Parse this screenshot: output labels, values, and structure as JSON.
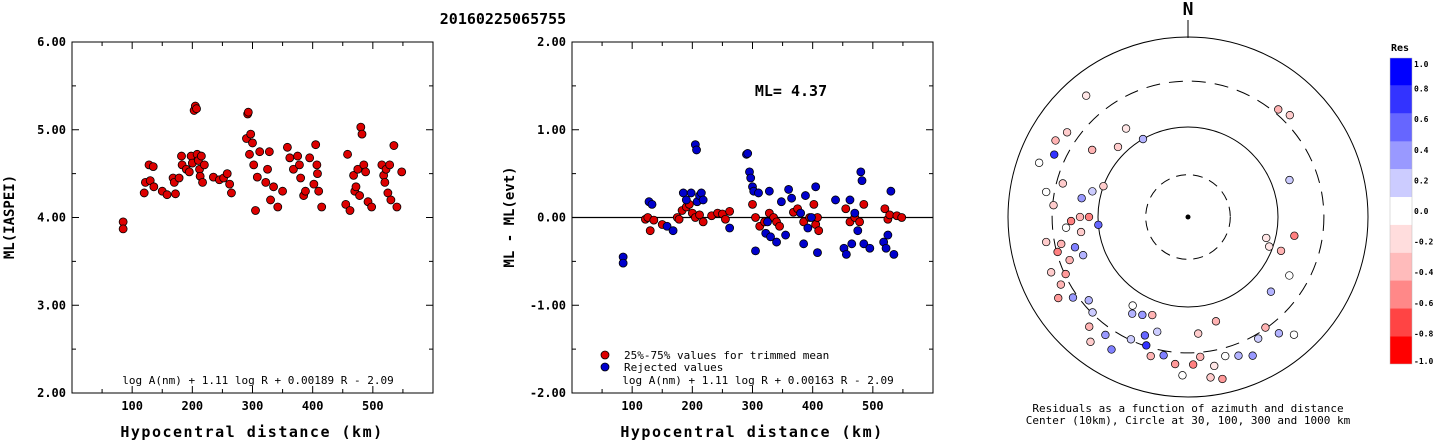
{
  "title": "20160225065755",
  "chart_data": [
    {
      "type": "scatter",
      "xlabel": "Hypocentral distance (km)",
      "ylabel": "ML(IASPEI)",
      "xlim": [
        0,
        600
      ],
      "ylim": [
        2.0,
        6.0
      ],
      "x_ticks": [
        "100",
        "200",
        "300",
        "400",
        "500"
      ],
      "y_ticks": [
        "2.00",
        "3.00",
        "4.00",
        "5.00",
        "6.00"
      ],
      "formula": "log A(nm) + 1.11 log R + 0.00189 R - 2.09",
      "marker_color": "#dd0000",
      "points": [
        [
          85,
          3.95
        ],
        [
          85,
          3.87
        ],
        [
          120,
          4.28
        ],
        [
          122,
          4.4
        ],
        [
          128,
          4.6
        ],
        [
          130,
          4.42
        ],
        [
          135,
          4.58
        ],
        [
          136,
          4.35
        ],
        [
          150,
          4.3
        ],
        [
          158,
          4.26
        ],
        [
          168,
          4.45
        ],
        [
          170,
          4.4
        ],
        [
          172,
          4.27
        ],
        [
          178,
          4.45
        ],
        [
          182,
          4.7
        ],
        [
          183,
          4.6
        ],
        [
          190,
          4.55
        ],
        [
          195,
          4.52
        ],
        [
          198,
          4.7
        ],
        [
          200,
          4.62
        ],
        [
          203,
          5.22
        ],
        [
          205,
          5.27
        ],
        [
          207,
          5.24
        ],
        [
          208,
          4.72
        ],
        [
          210,
          4.65
        ],
        [
          212,
          4.55
        ],
        [
          213,
          4.47
        ],
        [
          215,
          4.7
        ],
        [
          217,
          4.4
        ],
        [
          220,
          4.6
        ],
        [
          235,
          4.46
        ],
        [
          245,
          4.43
        ],
        [
          252,
          4.45
        ],
        [
          258,
          4.5
        ],
        [
          262,
          4.38
        ],
        [
          265,
          4.28
        ],
        [
          290,
          4.9
        ],
        [
          292,
          5.18
        ],
        [
          293,
          5.2
        ],
        [
          295,
          4.72
        ],
        [
          297,
          4.95
        ],
        [
          300,
          4.85
        ],
        [
          302,
          4.6
        ],
        [
          305,
          4.08
        ],
        [
          308,
          4.46
        ],
        [
          312,
          4.75
        ],
        [
          322,
          4.4
        ],
        [
          325,
          4.55
        ],
        [
          328,
          4.75
        ],
        [
          330,
          4.2
        ],
        [
          335,
          4.35
        ],
        [
          342,
          4.12
        ],
        [
          350,
          4.3
        ],
        [
          358,
          4.8
        ],
        [
          362,
          4.68
        ],
        [
          368,
          4.55
        ],
        [
          375,
          4.7
        ],
        [
          378,
          4.6
        ],
        [
          380,
          4.45
        ],
        [
          385,
          4.25
        ],
        [
          388,
          4.3
        ],
        [
          395,
          4.68
        ],
        [
          402,
          4.38
        ],
        [
          405,
          4.83
        ],
        [
          407,
          4.6
        ],
        [
          408,
          4.5
        ],
        [
          410,
          4.3
        ],
        [
          415,
          4.12
        ],
        [
          455,
          4.15
        ],
        [
          458,
          4.72
        ],
        [
          462,
          4.08
        ],
        [
          468,
          4.48
        ],
        [
          470,
          4.3
        ],
        [
          472,
          4.35
        ],
        [
          475,
          4.55
        ],
        [
          478,
          4.25
        ],
        [
          480,
          5.03
        ],
        [
          482,
          4.95
        ],
        [
          485,
          4.6
        ],
        [
          488,
          4.52
        ],
        [
          492,
          4.18
        ],
        [
          498,
          4.12
        ],
        [
          515,
          4.6
        ],
        [
          518,
          4.48
        ],
        [
          520,
          4.4
        ],
        [
          522,
          4.55
        ],
        [
          525,
          4.28
        ],
        [
          528,
          4.6
        ],
        [
          530,
          4.2
        ],
        [
          535,
          4.82
        ],
        [
          540,
          4.12
        ],
        [
          548,
          4.52
        ]
      ]
    },
    {
      "type": "scatter",
      "xlabel": "Hypocentral distance (km)",
      "ylabel": "ML - ML(evt)",
      "xlim": [
        0,
        600
      ],
      "ylim": [
        -2.0,
        2.0
      ],
      "x_ticks": [
        "100",
        "200",
        "300",
        "400",
        "500"
      ],
      "y_ticks": [
        "-2.00",
        "-1.00",
        "0.00",
        "1.00",
        "2.00"
      ],
      "ml_label": "ML= 4.37",
      "formula": "log A(nm) + 1.11 log R + 0.00163 R - 2.09",
      "legend": [
        {
          "label": "25%-75% values for trimmed mean",
          "color": "#dd0000"
        },
        {
          "label": "Rejected values",
          "color": "#0000cc"
        }
      ],
      "series": [
        {
          "name": "25%-75% values for trimmed mean",
          "color": "#dd0000",
          "points": [
            [
              122,
              -0.02
            ],
            [
              126,
              0.0
            ],
            [
              130,
              -0.15
            ],
            [
              136,
              -0.03
            ],
            [
              150,
              -0.08
            ],
            [
              175,
              0.0
            ],
            [
              178,
              -0.02
            ],
            [
              183,
              0.08
            ],
            [
              190,
              0.12
            ],
            [
              195,
              0.15
            ],
            [
              200,
              0.05
            ],
            [
              205,
              0.0
            ],
            [
              212,
              0.03
            ],
            [
              218,
              -0.05
            ],
            [
              232,
              0.02
            ],
            [
              242,
              0.05
            ],
            [
              250,
              0.04
            ],
            [
              255,
              -0.02
            ],
            [
              262,
              0.07
            ],
            [
              300,
              0.15
            ],
            [
              305,
              0.0
            ],
            [
              312,
              -0.1
            ],
            [
              320,
              -0.05
            ],
            [
              328,
              0.05
            ],
            [
              335,
              0.0
            ],
            [
              340,
              -0.05
            ],
            [
              345,
              -0.1
            ],
            [
              368,
              0.06
            ],
            [
              375,
              0.1
            ],
            [
              385,
              -0.05
            ],
            [
              395,
              0.0
            ],
            [
              402,
              0.15
            ],
            [
              405,
              -0.08
            ],
            [
              408,
              0.0
            ],
            [
              410,
              -0.15
            ],
            [
              455,
              0.1
            ],
            [
              462,
              -0.05
            ],
            [
              470,
              0.0
            ],
            [
              478,
              -0.05
            ],
            [
              485,
              0.15
            ],
            [
              520,
              0.1
            ],
            [
              525,
              -0.02
            ],
            [
              528,
              0.03
            ],
            [
              540,
              0.02
            ],
            [
              548,
              0.0
            ]
          ]
        },
        {
          "name": "Rejected values",
          "color": "#0000cc",
          "points": [
            [
              85,
              -0.45
            ],
            [
              85,
              -0.52
            ],
            [
              128,
              0.18
            ],
            [
              133,
              0.15
            ],
            [
              158,
              -0.1
            ],
            [
              168,
              -0.15
            ],
            [
              185,
              0.28
            ],
            [
              190,
              0.2
            ],
            [
              198,
              0.28
            ],
            [
              205,
              0.83
            ],
            [
              207,
              0.77
            ],
            [
              208,
              0.18
            ],
            [
              212,
              0.25
            ],
            [
              215,
              0.28
            ],
            [
              218,
              0.2
            ],
            [
              262,
              -0.12
            ],
            [
              290,
              0.72
            ],
            [
              292,
              0.73
            ],
            [
              295,
              0.52
            ],
            [
              297,
              0.45
            ],
            [
              300,
              0.35
            ],
            [
              302,
              0.3
            ],
            [
              305,
              -0.38
            ],
            [
              310,
              0.28
            ],
            [
              322,
              -0.18
            ],
            [
              325,
              -0.05
            ],
            [
              328,
              0.3
            ],
            [
              330,
              -0.22
            ],
            [
              340,
              -0.28
            ],
            [
              348,
              0.18
            ],
            [
              355,
              -0.2
            ],
            [
              360,
              0.32
            ],
            [
              365,
              0.22
            ],
            [
              380,
              0.05
            ],
            [
              385,
              -0.3
            ],
            [
              388,
              0.25
            ],
            [
              392,
              -0.12
            ],
            [
              398,
              0.0
            ],
            [
              405,
              0.35
            ],
            [
              408,
              -0.4
            ],
            [
              438,
              0.2
            ],
            [
              452,
              -0.35
            ],
            [
              456,
              -0.42
            ],
            [
              462,
              0.2
            ],
            [
              465,
              -0.3
            ],
            [
              470,
              0.05
            ],
            [
              475,
              -0.15
            ],
            [
              480,
              0.52
            ],
            [
              482,
              0.42
            ],
            [
              485,
              -0.3
            ],
            [
              495,
              -0.35
            ],
            [
              518,
              -0.28
            ],
            [
              522,
              -0.35
            ],
            [
              525,
              -0.2
            ],
            [
              530,
              0.3
            ],
            [
              535,
              -0.42
            ]
          ]
        }
      ]
    },
    {
      "type": "polar-scatter",
      "north_label": "N",
      "caption_line1": "Residuals as a function of azimuth and distance",
      "caption_line2": "Center (10km), Circle at 30, 100, 300 and 1000 km",
      "colorbar_title": "Res",
      "colorbar_ticks": [
        "1.0",
        "0.8",
        "0.6",
        "0.4",
        "0.2",
        "0.0",
        "-0.2",
        "-0.4",
        "-0.6",
        "-0.8",
        "-1.0"
      ],
      "colorbar_colors": [
        "#0000ff",
        "#3333ff",
        "#6666ff",
        "#9999ff",
        "#ccccff",
        "#ffffff",
        "#ffdddd",
        "#ffbbbb",
        "#ff8888",
        "#ff4444",
        "#ff0000"
      ],
      "points": [
        [
          165,
          0.6,
          -0.3
        ],
        [
          175,
          0.65,
          -0.2
        ],
        [
          105,
          0.45,
          -0.1
        ],
        [
          110,
          0.48,
          -0.1
        ],
        [
          300,
          0.85,
          -0.3
        ],
        [
          305,
          0.82,
          -0.2
        ],
        [
          330,
          0.5,
          0.3
        ],
        [
          325,
          0.6,
          -0.1
        ],
        [
          295,
          0.82,
          0.8
        ],
        [
          290,
          0.88,
          0.0
        ],
        [
          270,
          0.6,
          -0.3
        ],
        [
          268,
          0.65,
          -0.5
        ],
        [
          262,
          0.6,
          -0.2
        ],
        [
          265,
          0.68,
          0.0
        ],
        [
          258,
          0.72,
          -0.3
        ],
        [
          255,
          0.75,
          -0.5
        ],
        [
          260,
          0.8,
          -0.2
        ],
        [
          250,
          0.7,
          -0.3
        ],
        [
          245,
          0.75,
          -0.4
        ],
        [
          242,
          0.8,
          -0.3
        ],
        [
          248,
          0.82,
          -0.2
        ],
        [
          238,
          0.85,
          -0.4
        ],
        [
          235,
          0.78,
          0.4
        ],
        [
          230,
          0.72,
          0.3
        ],
        [
          225,
          0.75,
          0.2
        ],
        [
          222,
          0.82,
          -0.3
        ],
        [
          218,
          0.88,
          -0.2
        ],
        [
          215,
          0.8,
          0.4
        ],
        [
          210,
          0.85,
          0.5
        ],
        [
          205,
          0.75,
          0.2
        ],
        [
          200,
          0.7,
          0.6
        ],
        [
          198,
          0.75,
          0.8
        ],
        [
          195,
          0.8,
          -0.3
        ],
        [
          190,
          0.78,
          0.5
        ],
        [
          185,
          0.82,
          -0.4
        ],
        [
          182,
          0.88,
          0.0
        ],
        [
          178,
          0.82,
          -0.5
        ],
        [
          175,
          0.78,
          -0.3
        ],
        [
          170,
          0.84,
          -0.1
        ],
        [
          172,
          0.9,
          -0.2
        ],
        [
          168,
          0.92,
          -0.4
        ],
        [
          165,
          0.8,
          0.0
        ],
        [
          160,
          0.82,
          0.3
        ],
        [
          155,
          0.85,
          0.4
        ],
        [
          150,
          0.78,
          0.2
        ],
        [
          145,
          0.75,
          -0.3
        ],
        [
          142,
          0.82,
          0.3
        ],
        [
          138,
          0.88,
          0.0
        ],
        [
          270,
          0.55,
          -0.5
        ],
        [
          275,
          0.75,
          -0.2
        ],
        [
          280,
          0.8,
          0.0
        ],
        [
          285,
          0.72,
          -0.2
        ],
        [
          320,
          0.88,
          -0.1
        ],
        [
          40,
          0.78,
          -0.3
        ],
        [
          45,
          0.8,
          -0.2
        ],
        [
          70,
          0.6,
          0.2
        ],
        [
          100,
          0.6,
          -0.5
        ],
        [
          110,
          0.55,
          -0.3
        ],
        [
          120,
          0.65,
          0.0
        ],
        [
          132,
          0.62,
          0.3
        ],
        [
          250,
          0.62,
          0.3
        ],
        [
          255,
          0.65,
          0.5
        ],
        [
          265,
          0.5,
          0.6
        ],
        [
          280,
          0.6,
          0.4
        ],
        [
          285,
          0.55,
          0.2
        ],
        [
          290,
          0.5,
          -0.2
        ],
        [
          305,
          0.65,
          -0.3
        ],
        [
          315,
          0.55,
          -0.2
        ],
        [
          205,
          0.6,
          0.4
        ],
        [
          210,
          0.62,
          0.3
        ],
        [
          212,
          0.58,
          0.0
        ],
        [
          200,
          0.58,
          -0.3
        ],
        [
          195,
          0.66,
          0.2
        ]
      ]
    }
  ]
}
